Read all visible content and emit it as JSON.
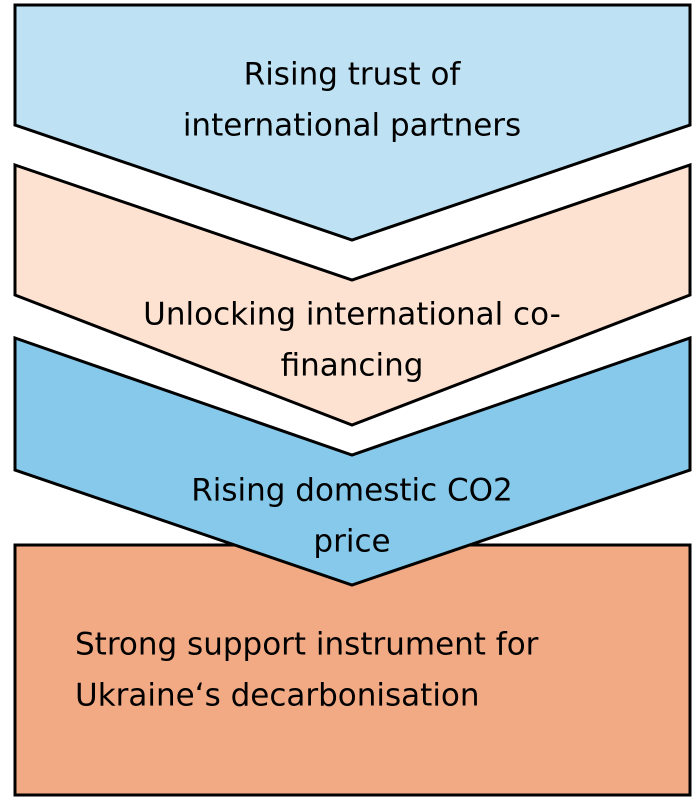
{
  "steps": [
    {
      "lines": [
        "Rising trust of",
        "international partners"
      ]
    },
    {
      "lines": [
        "Unlocking international co-",
        "financing"
      ]
    },
    {
      "lines": [
        "Rising domestic CO2",
        "price"
      ]
    }
  ],
  "result": {
    "lines": [
      "Strong support instrument for",
      "Ukraine‘s decarbonisation"
    ]
  }
}
